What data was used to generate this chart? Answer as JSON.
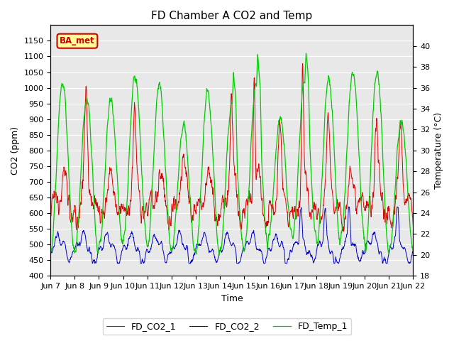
{
  "title": "FD Chamber A CO2 and Temp",
  "xlabel": "Time",
  "ylabel_left": "CO2 (ppm)",
  "ylabel_right": "Temperature (°C)",
  "ylim_left": [
    400,
    1200
  ],
  "ylim_right": [
    18,
    42
  ],
  "yticks_left": [
    400,
    450,
    500,
    550,
    600,
    650,
    700,
    750,
    800,
    850,
    900,
    950,
    1000,
    1050,
    1100,
    1150
  ],
  "yticks_right": [
    18,
    20,
    22,
    24,
    26,
    28,
    30,
    32,
    34,
    36,
    38,
    40
  ],
  "color_co2_1": "#dd0000",
  "color_co2_2": "#0000cc",
  "color_temp_1": "#00cc00",
  "legend_labels": [
    "FD_CO2_1",
    "FD_CO2_2",
    "FD_Temp_1"
  ],
  "annotation_text": "BA_met",
  "annotation_color": "#cc0000",
  "annotation_bg": "#ffff99",
  "background_color": "#e8e8e8",
  "grid_color": "#ffffff",
  "xtick_labels": [
    "Jun 7",
    "Jun 8",
    "Jun 9",
    "Jun 10",
    "Jun 11",
    "Jun 12",
    "Jun 13",
    "Jun 14",
    "Jun 15",
    "Jun 16",
    "Jun 17",
    "Jun 18",
    "Jun 19",
    "Jun 20",
    "Jun 21",
    "Jun 22"
  ]
}
